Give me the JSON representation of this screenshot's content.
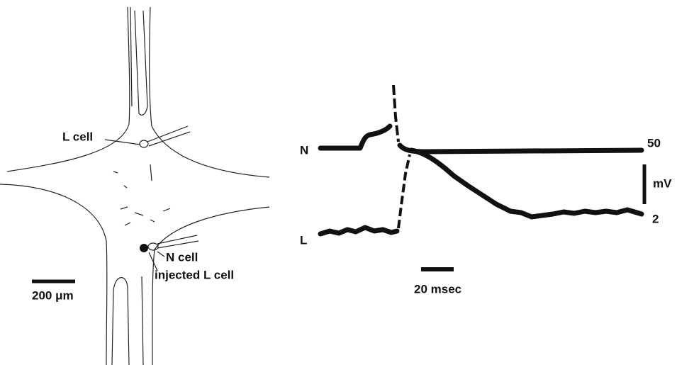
{
  "left_panel": {
    "l_cell_label": "L cell",
    "n_cell_label": "N cell",
    "injected_label": "injected L cell",
    "scale_bar_label": "200 μm"
  },
  "right_panel": {
    "trace_n_label": "N",
    "trace_l_label": "L",
    "voltage_top": 50,
    "voltage_unit": "mV",
    "voltage_bottom": 2,
    "time_scale_label": "20 msec"
  }
}
